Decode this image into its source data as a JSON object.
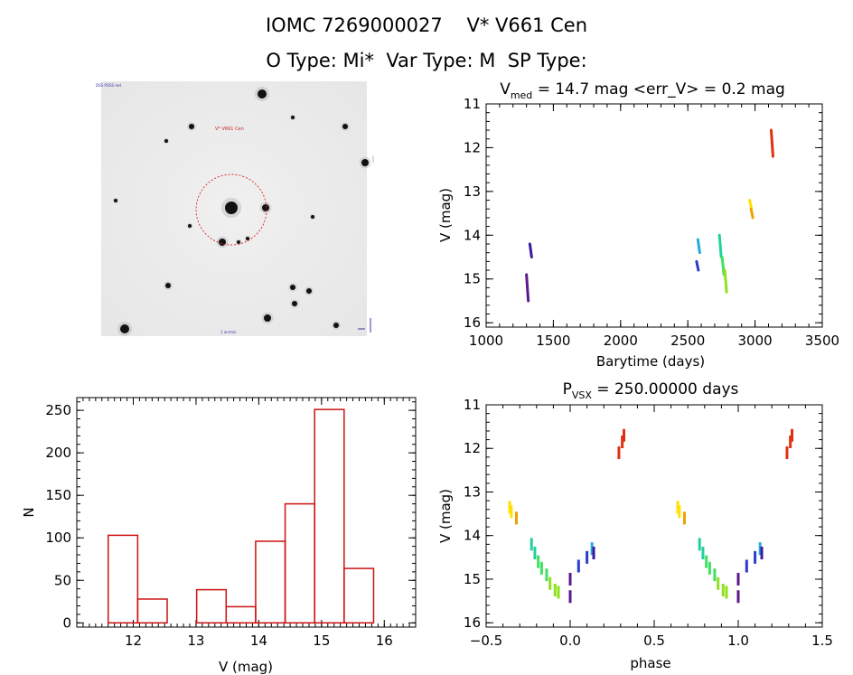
{
  "header": {
    "title_line1": "IOMC 7269000027    V* V661 Cen",
    "title_line2": "O Type: Mi*  Var Type: M  SP Type:"
  },
  "thumbnail": {
    "target_label": "V* V661 Cen",
    "corner_label": "DSS POSS red",
    "bottom_label": "1 arcmin"
  },
  "chart_data": [
    {
      "id": "light_curve",
      "type": "scatter",
      "title_main": "V",
      "title_sub": "med",
      "title_rest": " = 14.7 mag <err_V> = 0.2 mag",
      "xlabel": "Barytime (days)",
      "ylabel": "V (mag)",
      "xlim": [
        1000,
        3500
      ],
      "ylim": [
        16.1,
        11.0
      ],
      "xticks": [
        1000,
        1500,
        2000,
        2500,
        3000,
        3500
      ],
      "yticks": [
        11,
        12,
        13,
        14,
        15,
        16
      ],
      "segments": [
        {
          "x": 1300,
          "y_from": 14.9,
          "y_to": 15.5,
          "color": "#5a1a8c"
        },
        {
          "x": 1325,
          "y_from": 14.2,
          "y_to": 14.5,
          "color": "#3a1aa0"
        },
        {
          "x": 2565,
          "y_from": 14.6,
          "y_to": 14.8,
          "color": "#2a3ccc"
        },
        {
          "x": 2575,
          "y_from": 14.1,
          "y_to": 14.4,
          "color": "#22aadd"
        },
        {
          "x": 2735,
          "y_from": 14.0,
          "y_to": 14.5,
          "color": "#20d0a0"
        },
        {
          "x": 2755,
          "y_from": 14.5,
          "y_to": 14.9,
          "color": "#40e060"
        },
        {
          "x": 2775,
          "y_from": 14.8,
          "y_to": 15.3,
          "color": "#90e020"
        },
        {
          "x": 2960,
          "y_from": 13.2,
          "y_to": 13.4,
          "color": "#ffe000"
        },
        {
          "x": 2970,
          "y_from": 13.4,
          "y_to": 13.6,
          "color": "#f0a000"
        },
        {
          "x": 3120,
          "y_from": 11.6,
          "y_to": 12.2,
          "color": "#e03010"
        }
      ]
    },
    {
      "id": "phased",
      "type": "scatter",
      "title_main": "P",
      "title_sub": "VSX",
      "title_rest": " = 250.00000 days",
      "xlabel": "phase",
      "ylabel": "V (mag)",
      "xlim": [
        -0.5,
        1.5
      ],
      "ylim": [
        16.1,
        11.0
      ],
      "xticks": [
        -0.5,
        0.0,
        0.5,
        1.0,
        1.5
      ],
      "xticklabels": [
        "−0.5",
        "0.0",
        "0.5",
        "1.0",
        "1.5"
      ],
      "yticks": [
        11,
        12,
        13,
        14,
        15,
        16
      ],
      "points": [
        {
          "phase": -0.36,
          "y": 13.35,
          "color": "#ffe000"
        },
        {
          "phase": -0.35,
          "y": 13.45,
          "color": "#ffe000"
        },
        {
          "phase": -0.32,
          "y": 13.6,
          "color": "#f0a000"
        },
        {
          "phase": -0.23,
          "y": 14.2,
          "color": "#20d0a0"
        },
        {
          "phase": -0.21,
          "y": 14.4,
          "color": "#20d0a0"
        },
        {
          "phase": -0.19,
          "y": 14.6,
          "color": "#40e060"
        },
        {
          "phase": -0.17,
          "y": 14.75,
          "color": "#40e060"
        },
        {
          "phase": -0.14,
          "y": 14.9,
          "color": "#40e060"
        },
        {
          "phase": -0.12,
          "y": 15.1,
          "color": "#90e020"
        },
        {
          "phase": -0.09,
          "y": 15.25,
          "color": "#90e020"
        },
        {
          "phase": -0.07,
          "y": 15.3,
          "color": "#90e020"
        },
        {
          "phase": 0.0,
          "y": 15.0,
          "color": "#5a1a8c"
        },
        {
          "phase": 0.0,
          "y": 15.4,
          "color": "#5a1a8c"
        },
        {
          "phase": 0.05,
          "y": 14.7,
          "color": "#2a3ccc"
        },
        {
          "phase": 0.1,
          "y": 14.5,
          "color": "#2a3ccc"
        },
        {
          "phase": 0.13,
          "y": 14.3,
          "color": "#22aadd"
        },
        {
          "phase": 0.14,
          "y": 14.4,
          "color": "#3a1aa0"
        },
        {
          "phase": 0.29,
          "y": 12.1,
          "color": "#e03010"
        },
        {
          "phase": 0.31,
          "y": 11.85,
          "color": "#e03010"
        },
        {
          "phase": 0.32,
          "y": 11.7,
          "color": "#e03010"
        },
        {
          "phase": 0.64,
          "y": 13.35,
          "color": "#ffe000"
        },
        {
          "phase": 0.65,
          "y": 13.45,
          "color": "#ffe000"
        },
        {
          "phase": 0.68,
          "y": 13.6,
          "color": "#f0a000"
        },
        {
          "phase": 0.77,
          "y": 14.2,
          "color": "#20d0a0"
        },
        {
          "phase": 0.79,
          "y": 14.4,
          "color": "#20d0a0"
        },
        {
          "phase": 0.81,
          "y": 14.6,
          "color": "#40e060"
        },
        {
          "phase": 0.83,
          "y": 14.75,
          "color": "#40e060"
        },
        {
          "phase": 0.86,
          "y": 14.9,
          "color": "#40e060"
        },
        {
          "phase": 0.88,
          "y": 15.1,
          "color": "#90e020"
        },
        {
          "phase": 0.91,
          "y": 15.25,
          "color": "#90e020"
        },
        {
          "phase": 0.93,
          "y": 15.3,
          "color": "#90e020"
        },
        {
          "phase": 1.0,
          "y": 15.0,
          "color": "#5a1a8c"
        },
        {
          "phase": 1.0,
          "y": 15.4,
          "color": "#5a1a8c"
        },
        {
          "phase": 1.05,
          "y": 14.7,
          "color": "#2a3ccc"
        },
        {
          "phase": 1.1,
          "y": 14.5,
          "color": "#2a3ccc"
        },
        {
          "phase": 1.13,
          "y": 14.3,
          "color": "#22aadd"
        },
        {
          "phase": 1.14,
          "y": 14.4,
          "color": "#3a1aa0"
        },
        {
          "phase": 1.29,
          "y": 12.1,
          "color": "#e03010"
        },
        {
          "phase": 1.31,
          "y": 11.85,
          "color": "#e03010"
        },
        {
          "phase": 1.32,
          "y": 11.7,
          "color": "#e03010"
        }
      ]
    },
    {
      "id": "histogram",
      "type": "bar",
      "xlabel": "V (mag)",
      "ylabel": "N",
      "xlim": [
        11.1,
        16.5
      ],
      "ylim": [
        -5,
        265
      ],
      "xticks": [
        12,
        13,
        14,
        15,
        16
      ],
      "yticks": [
        0,
        50,
        100,
        150,
        200,
        250
      ],
      "bar_color": "#cc1111",
      "bins": [
        {
          "from": 11.6,
          "to": 12.07,
          "count": 103
        },
        {
          "from": 12.07,
          "to": 12.54,
          "count": 28
        },
        {
          "from": 13.01,
          "to": 13.48,
          "count": 39
        },
        {
          "from": 13.48,
          "to": 13.95,
          "count": 19
        },
        {
          "from": 13.95,
          "to": 14.42,
          "count": 96
        },
        {
          "from": 14.42,
          "to": 14.89,
          "count": 140
        },
        {
          "from": 14.89,
          "to": 15.36,
          "count": 251
        },
        {
          "from": 15.36,
          "to": 15.83,
          "count": 64
        }
      ]
    }
  ]
}
